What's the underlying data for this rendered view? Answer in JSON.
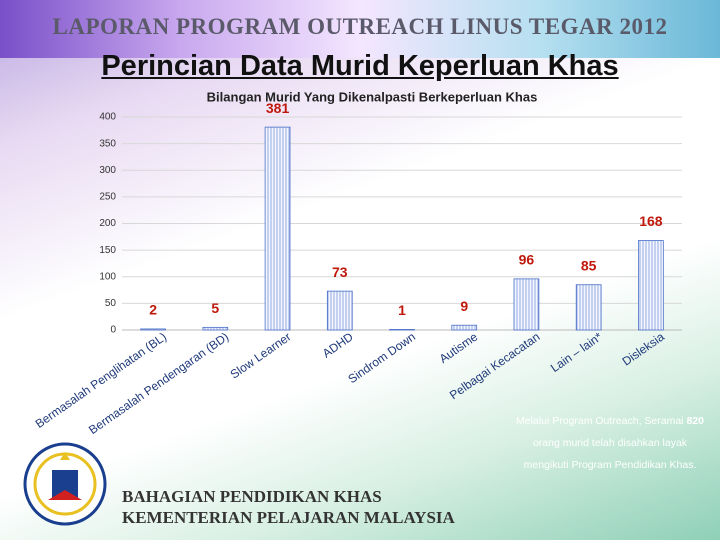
{
  "header": "LAPORAN PROGRAM OUTREACH LINUS TEGAR 2012",
  "title": "Perincian Data Murid Keperluan Khas",
  "chart_data": {
    "type": "bar",
    "title": "Bilangan Murid Yang Dikenalpasti Berkeperluan Khas",
    "categories": [
      "Bermasalah Penglihatan (BL)",
      "Bermasalah Pendengaran (BD)",
      "Slow Learner",
      "ADHD",
      "Sindrom Down",
      "Autisme",
      "Pelbagai Kecacatan",
      "Lain – lain*",
      "Disleksia"
    ],
    "values": [
      2,
      5,
      381,
      73,
      1,
      9,
      96,
      85,
      168
    ],
    "color": "#4a6fc8",
    "label_color": "#c0180c",
    "ylim": [
      0,
      400
    ],
    "yticks": [
      0,
      50,
      100,
      150,
      200,
      250,
      300,
      350,
      400
    ],
    "grid": true
  },
  "note": {
    "before": "Melalui Program Outreach, Seramai",
    "number": "820",
    "after": "orang murid telah disahkan layak mengikuti Program Pendidikan Khas."
  },
  "footer": [
    "BAHAGIAN PENDIDIKAN KHAS",
    "KEMENTERIAN PELAJARAN MALAYSIA"
  ]
}
